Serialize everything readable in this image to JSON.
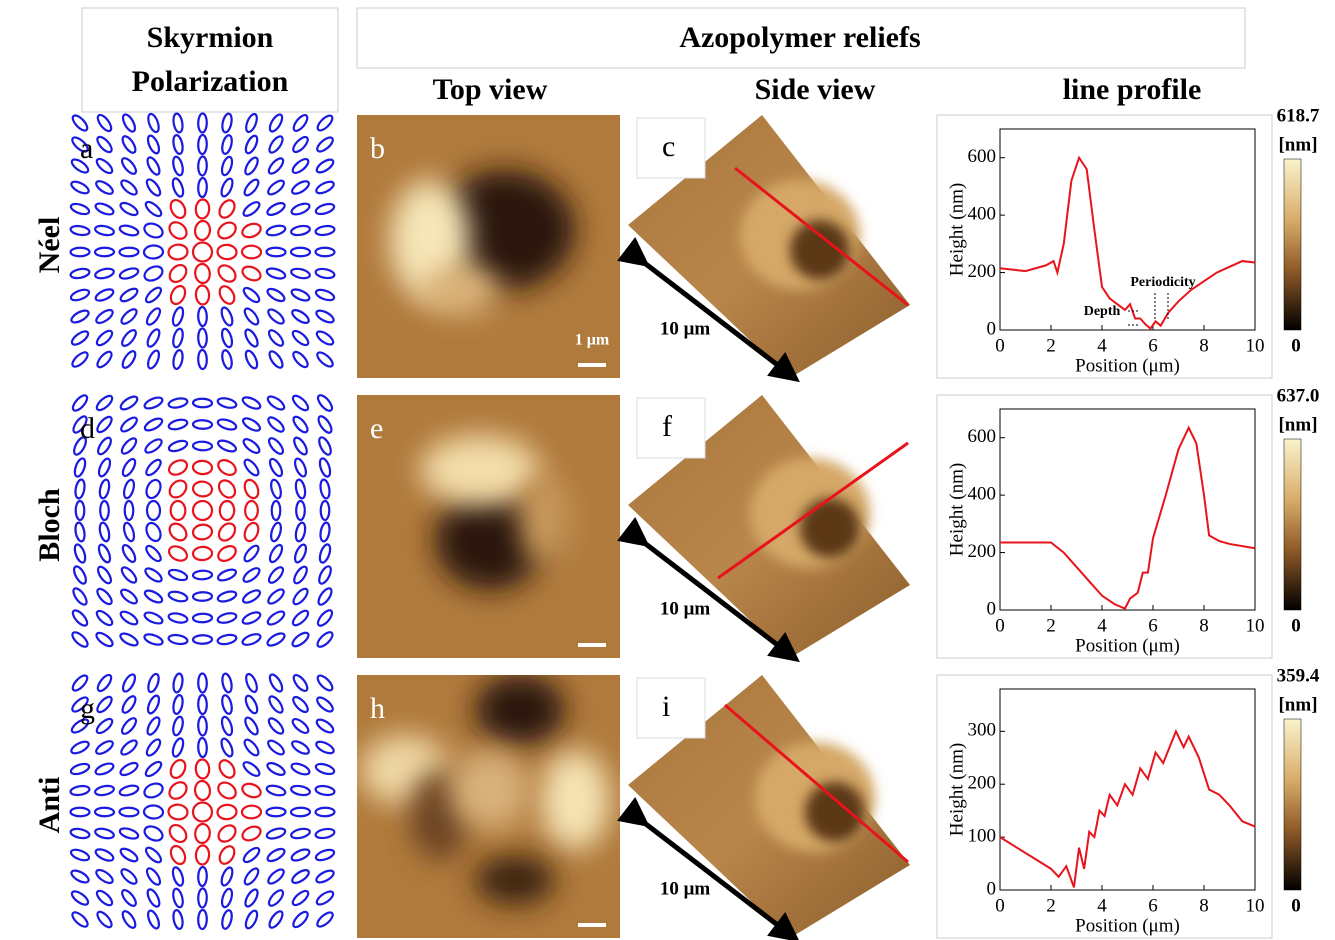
{
  "header": {
    "polarization": [
      "Skyrmion",
      "Polarization"
    ],
    "reliefs": "Azopolymer reliefs",
    "columns": [
      "Top view",
      "Side view",
      "line profile"
    ]
  },
  "rows": [
    {
      "label": "Néel",
      "letters": [
        "a",
        "b",
        "c"
      ],
      "scale": "1 μm",
      "side_scale": "10 μm",
      "colorbar": {
        "max": "618.7",
        "unit": "[nm]",
        "min": "0"
      }
    },
    {
      "label": "Bloch",
      "letters": [
        "d",
        "e",
        "f"
      ],
      "side_scale": "10 μm",
      "colorbar": {
        "max": "637.0",
        "unit": "[nm]",
        "min": "0"
      }
    },
    {
      "label": "Anti",
      "letters": [
        "g",
        "h",
        "i"
      ],
      "side_scale": "10 μm",
      "colorbar": {
        "max": "359.4",
        "unit": "[nm]",
        "min": "0"
      }
    }
  ],
  "chart_data": [
    {
      "type": "line",
      "x_label": "Position (μm)",
      "y_label": "Height (nm)",
      "color": "#e8131b",
      "xlim": [
        0,
        10
      ],
      "ylim": [
        0,
        700
      ],
      "xticks": [
        0,
        2,
        4,
        6,
        8,
        10
      ],
      "yticks": [
        0,
        200,
        400,
        600
      ],
      "annotations": [
        "Periodicity",
        "Depth"
      ],
      "x": [
        0,
        1,
        1.8,
        2.1,
        2.25,
        2.5,
        2.8,
        3.1,
        3.4,
        3.7,
        4.0,
        4.3,
        4.6,
        4.9,
        5.1,
        5.3,
        5.5,
        5.7,
        5.9,
        6.1,
        6.3,
        6.6,
        7,
        7.5,
        8,
        8.5,
        9,
        9.5,
        10
      ],
      "values": [
        215,
        205,
        225,
        240,
        200,
        300,
        520,
        600,
        560,
        350,
        150,
        110,
        90,
        70,
        90,
        40,
        40,
        20,
        5,
        30,
        15,
        60,
        100,
        140,
        170,
        200,
        220,
        240,
        235
      ]
    },
    {
      "type": "line",
      "x_label": "Position (μm)",
      "y_label": "Height (nm)",
      "color": "#e8131b",
      "xlim": [
        0,
        10
      ],
      "ylim": [
        0,
        700
      ],
      "xticks": [
        0,
        2,
        4,
        6,
        8,
        10
      ],
      "yticks": [
        0,
        200,
        400,
        600
      ],
      "x": [
        0,
        1,
        2,
        2.5,
        3,
        3.5,
        4,
        4.5,
        4.9,
        5.1,
        5.4,
        5.6,
        5.8,
        6,
        6.5,
        7,
        7.4,
        7.7,
        8,
        8.2,
        8.6,
        9,
        10
      ],
      "values": [
        235,
        235,
        235,
        200,
        150,
        100,
        50,
        20,
        5,
        40,
        60,
        130,
        130,
        250,
        400,
        560,
        635,
        580,
        400,
        260,
        240,
        230,
        215
      ]
    },
    {
      "type": "line",
      "x_label": "Position (μm)",
      "y_label": "Height (nm)",
      "color": "#e8131b",
      "xlim": [
        0,
        10
      ],
      "ylim": [
        0,
        380
      ],
      "xticks": [
        0,
        2,
        4,
        6,
        8,
        10
      ],
      "yticks": [
        0,
        100,
        200,
        300
      ],
      "x": [
        0,
        0.5,
        1,
        1.5,
        2,
        2.3,
        2.6,
        2.9,
        3.1,
        3.3,
        3.5,
        3.7,
        3.9,
        4.1,
        4.3,
        4.6,
        4.9,
        5.2,
        5.5,
        5.8,
        6.1,
        6.4,
        6.9,
        7.2,
        7.4,
        7.8,
        8.2,
        8.6,
        9,
        9.5,
        10
      ],
      "values": [
        100,
        85,
        70,
        55,
        40,
        25,
        45,
        5,
        80,
        40,
        110,
        100,
        150,
        140,
        180,
        160,
        200,
        180,
        230,
        210,
        260,
        240,
        300,
        270,
        290,
        250,
        190,
        180,
        160,
        130,
        120
      ]
    }
  ]
}
